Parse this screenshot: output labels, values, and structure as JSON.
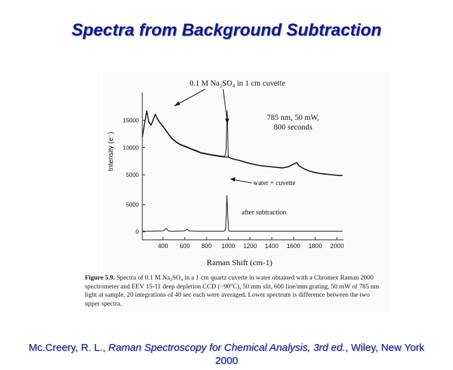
{
  "slide": {
    "title": "Spectra from Background Subtraction",
    "citation_author": "Mc.Creery, R. L., ",
    "citation_book": "Raman Spectroscopy for Chemical Analysis, 3rd ed.",
    "citation_publisher": ", Wiley, New York",
    "citation_year": "2000"
  },
  "figure": {
    "caption_label": "Figure 5.9.",
    "caption_text": "Spectra of 0.1 M Na₂SO₄ in a 1 cm quartz cuvette in water obtained with a Chromex Raman 2000 spectrometer and EEV 15-11 deep depletion CCD (−90°C), 50 mm slit, 600 line/mm grating, 50 mW of 785 nm light at sample, 20 integrations of 40 sec each were averaged. Lower spectrum is difference between the two upper spectra."
  },
  "chart_data": {
    "type": "line",
    "title": "",
    "xlabel": "Raman Shift (cm-1)",
    "ylabel": "Intensity (e⁻)",
    "xlim": [
      210,
      2060
    ],
    "x_ticks": [
      400,
      600,
      800,
      1000,
      1200,
      1400,
      1600,
      1800,
      2000
    ],
    "upper_panel": {
      "ylim": [
        3500,
        19500
      ],
      "y_ticks": [
        5000,
        10000,
        15000
      ],
      "series": [
        {
          "name": "0.1 M Na2SO4 in 1 cm cuvette",
          "x": [
            210,
            230,
            250,
            270,
            290,
            310,
            330,
            350,
            370,
            400,
            430,
            460,
            490,
            520,
            560,
            600,
            650,
            700,
            750,
            800,
            850,
            900,
            950,
            970,
            980,
            985,
            990,
            995,
            1000,
            1010,
            1050,
            1100,
            1150,
            1200,
            1250,
            1300,
            1350,
            1400,
            1450,
            1500,
            1550,
            1600,
            1630,
            1650,
            1700,
            1750,
            1800,
            1850,
            1900,
            1950,
            2000,
            2050
          ],
          "y": [
            12000,
            14500,
            16800,
            14800,
            14200,
            15200,
            16200,
            15300,
            14700,
            14000,
            13100,
            12300,
            11600,
            11100,
            10600,
            10300,
            9900,
            9500,
            9100,
            8900,
            8700,
            8550,
            8400,
            8450,
            9500,
            13500,
            16800,
            12500,
            8400,
            8200,
            7900,
            7700,
            7400,
            7100,
            6900,
            6700,
            6600,
            6500,
            6400,
            6300,
            6500,
            7000,
            7300,
            6700,
            6100,
            5700,
            5450,
            5250,
            5150,
            5050,
            4950,
            4900
          ]
        },
        {
          "name": "water + cuvette",
          "x": [
            210,
            230,
            250,
            270,
            290,
            310,
            330,
            350,
            370,
            400,
            430,
            460,
            490,
            520,
            560,
            600,
            650,
            700,
            750,
            800,
            850,
            900,
            950,
            1000,
            1050,
            1100,
            1150,
            1200,
            1250,
            1300,
            1350,
            1400,
            1450,
            1500,
            1550,
            1600,
            1630,
            1650,
            1700,
            1750,
            1800,
            1850,
            1900,
            1950,
            2000,
            2050
          ],
          "y": [
            11900,
            14400,
            16700,
            14700,
            14100,
            15100,
            16100,
            15200,
            14600,
            13900,
            13000,
            12200,
            11500,
            11000,
            10500,
            10200,
            9800,
            9400,
            9000,
            8800,
            8600,
            8450,
            8300,
            8250,
            7850,
            7650,
            7350,
            7050,
            6850,
            6650,
            6550,
            6450,
            6350,
            6250,
            6450,
            6950,
            7250,
            6650,
            6050,
            5650,
            5400,
            5200,
            5100,
            5000,
            4900,
            4850
          ]
        }
      ]
    },
    "lower_panel": {
      "ylim": [
        -1500,
        8000
      ],
      "y_ticks": [
        0,
        5000
      ],
      "series": [
        {
          "name": "after subtraction",
          "x": [
            210,
            300,
            400,
            430,
            450,
            470,
            500,
            600,
            620,
            640,
            700,
            800,
            900,
            960,
            975,
            982,
            988,
            995,
            1002,
            1010,
            1050,
            1100,
            1200,
            1300,
            1400,
            1450,
            1500,
            1600,
            1700,
            1800,
            1900,
            2000,
            2050
          ],
          "y": [
            100,
            100,
            150,
            600,
            150,
            100,
            100,
            150,
            500,
            150,
            100,
            100,
            100,
            100,
            400,
            3500,
            6700,
            3000,
            300,
            100,
            100,
            100,
            100,
            100,
            100,
            100,
            100,
            100,
            100,
            100,
            100,
            100,
            100
          ]
        }
      ]
    },
    "annotations": [
      "0.1 M Na₂SO₄ in 1 cm cuvette",
      "785 nm, 50 mW,",
      "800 seconds",
      "water + cuvette",
      "after subtraction"
    ]
  }
}
